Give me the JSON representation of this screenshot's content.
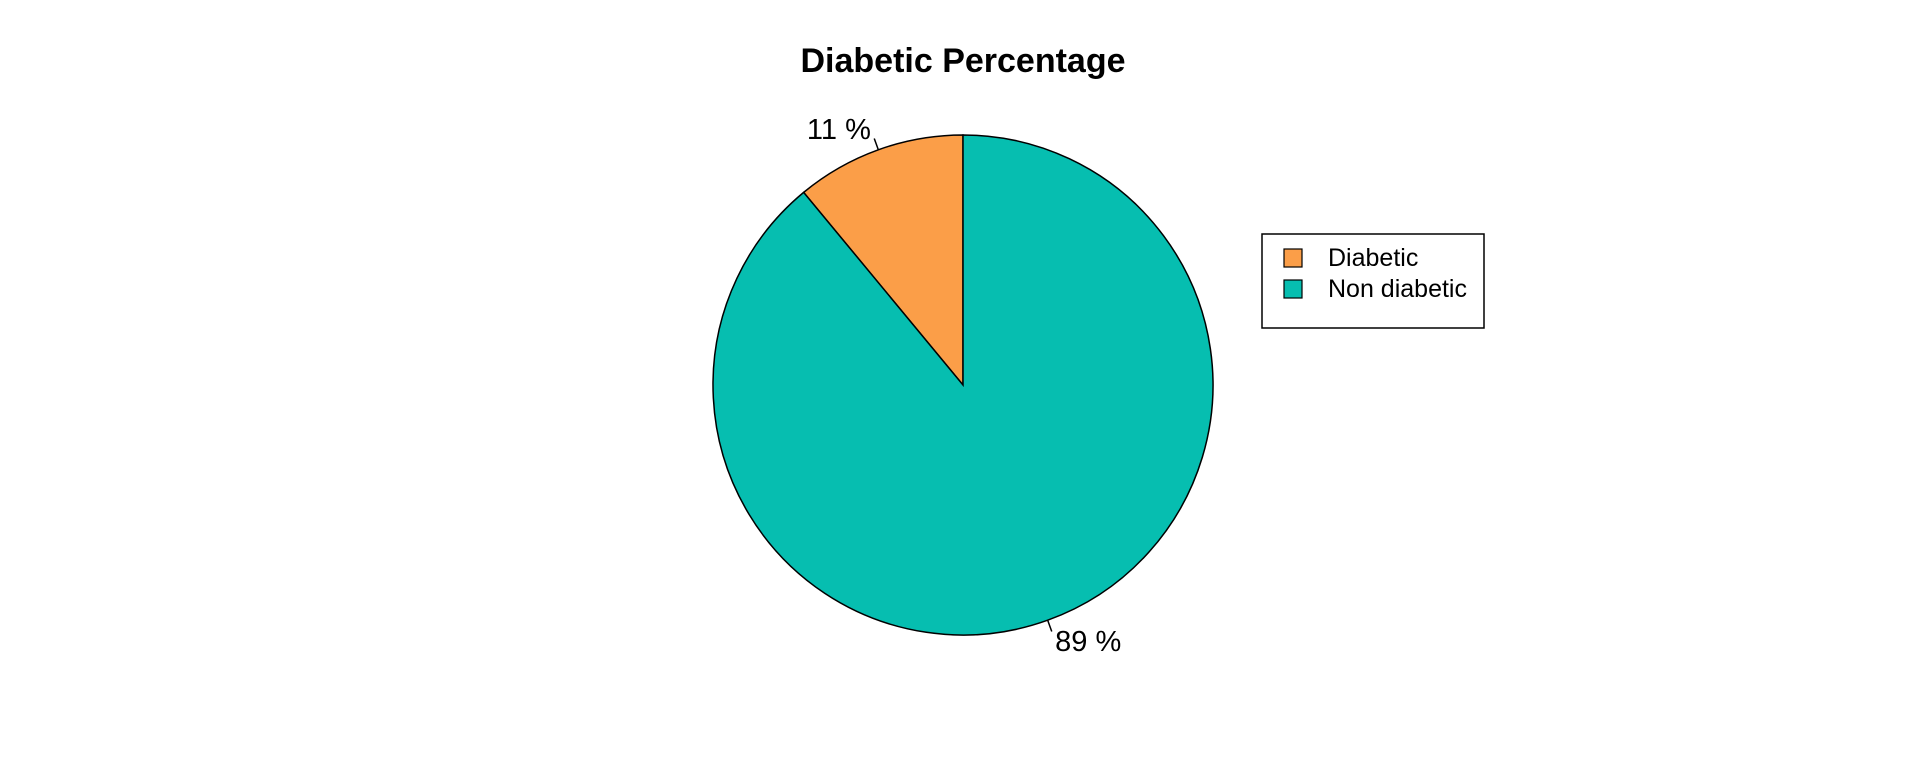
{
  "chart_data": {
    "type": "pie",
    "title": "Diabetic Percentage",
    "slices": [
      {
        "name": "Diabetic",
        "value": 11,
        "label": "11 %",
        "color": "#FB9E48"
      },
      {
        "name": "Non diabetic",
        "value": 89,
        "label": "89 %",
        "color": "#06BEB0"
      }
    ],
    "start_angle_deg": 90,
    "direction": "counterclockwise",
    "slice_border_color": "#000000",
    "legend": {
      "placement": "right",
      "entries": [
        "Diabetic",
        "Non diabetic"
      ]
    }
  }
}
